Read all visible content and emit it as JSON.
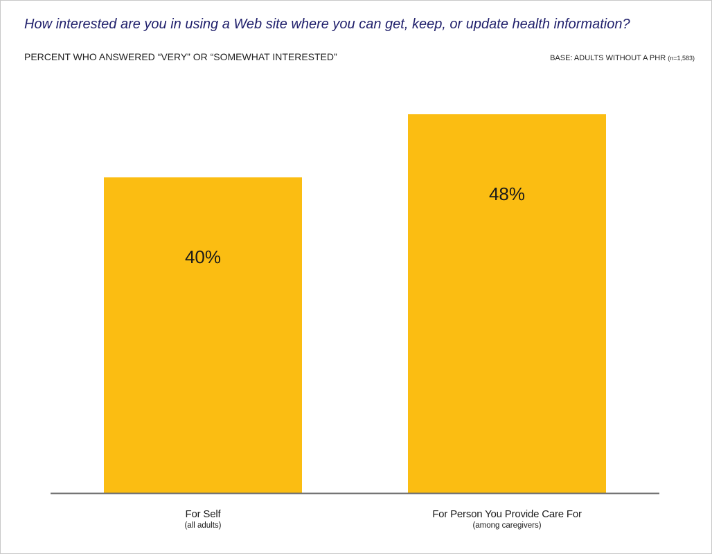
{
  "header": {
    "title": "How interested are you in using a Web site where you can get, keep, or update health information?",
    "subtitle": "PERCENT WHO ANSWERED “VERY” OR “SOMEWHAT INTERESTED”",
    "base_main": "BASE: ADULTS WITHOUT A PHR ",
    "base_n": "(n=1,583)"
  },
  "colors": {
    "bar": "#fbbd12",
    "axis": "#6b6b6b",
    "title": "#1f1f6b"
  },
  "chart_data": {
    "type": "bar",
    "title": "How interested are you in using a Web site where you can get, keep, or update health information?",
    "subtitle": "PERCENT WHO ANSWERED “VERY” OR “SOMEWHAT INTERESTED”",
    "categories": [
      "For Self",
      "For Person You Provide Care For"
    ],
    "category_sublabels": [
      "(all adults)",
      "(among caregivers)"
    ],
    "values": [
      40,
      48
    ],
    "value_labels": [
      "40%",
      "48%"
    ],
    "ylim": [
      0,
      48
    ],
    "grid": false,
    "legend": "none",
    "xlabel": "",
    "ylabel": ""
  }
}
